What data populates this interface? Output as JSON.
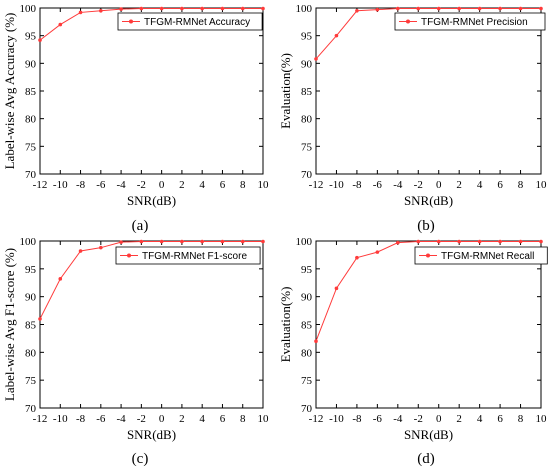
{
  "figure": {
    "colors": {
      "series": "#ff3b3b",
      "axis": "#000000"
    }
  },
  "chart_data": [
    {
      "type": "line",
      "caption": "(a)",
      "xlabel": "SNR(dB)",
      "ylabel": "Label-wise Avg Accuracy (%)",
      "xlim": [
        -12,
        10
      ],
      "ylim": [
        70,
        100
      ],
      "xticks": [
        -12,
        -10,
        -8,
        -6,
        -4,
        -2,
        0,
        2,
        4,
        6,
        8,
        10
      ],
      "yticks": [
        70,
        75,
        80,
        85,
        90,
        95,
        100
      ],
      "legend_position": "top-right",
      "x": [
        -12,
        -10,
        -8,
        -6,
        -4,
        -2,
        0,
        2,
        4,
        6,
        8,
        10
      ],
      "series": [
        {
          "name": "TFGM-RMNet Accuracy",
          "values": [
            94.2,
            97.0,
            99.2,
            99.5,
            99.8,
            99.9,
            99.9,
            99.9,
            99.9,
            99.9,
            99.9,
            99.9
          ]
        }
      ]
    },
    {
      "type": "line",
      "caption": "(b)",
      "xlabel": "SNR(dB)",
      "ylabel": "Evaluation(%)",
      "xlim": [
        -12,
        10
      ],
      "ylim": [
        70,
        100
      ],
      "xticks": [
        -12,
        -10,
        -8,
        -6,
        -4,
        -2,
        0,
        2,
        4,
        6,
        8,
        10
      ],
      "yticks": [
        70,
        75,
        80,
        85,
        90,
        95,
        100
      ],
      "legend_position": "top-right",
      "x": [
        -12,
        -10,
        -8,
        -6,
        -4,
        -2,
        0,
        2,
        4,
        6,
        8,
        10
      ],
      "series": [
        {
          "name": "TFGM-RMNet Precision",
          "values": [
            90.8,
            95.0,
            99.5,
            99.7,
            99.9,
            99.9,
            99.9,
            99.9,
            99.9,
            99.9,
            99.9,
            99.9
          ]
        }
      ]
    },
    {
      "type": "line",
      "caption": "(c)",
      "xlabel": "SNR(dB)",
      "ylabel": "Label-wise Avg F1-score (%)",
      "xlim": [
        -12,
        10
      ],
      "ylim": [
        70,
        100
      ],
      "xticks": [
        -12,
        -10,
        -8,
        -6,
        -4,
        -2,
        0,
        2,
        4,
        6,
        8,
        10
      ],
      "yticks": [
        70,
        75,
        80,
        85,
        90,
        95,
        100
      ],
      "legend_position": "top-right",
      "x": [
        -12,
        -10,
        -8,
        -6,
        -4,
        -2,
        0,
        2,
        4,
        6,
        8,
        10
      ],
      "series": [
        {
          "name": "TFGM-RMNet F1-score",
          "values": [
            86.0,
            93.2,
            98.2,
            98.8,
            99.8,
            99.9,
            99.9,
            99.9,
            99.9,
            99.9,
            99.9,
            99.9
          ]
        }
      ]
    },
    {
      "type": "line",
      "caption": "(d)",
      "xlabel": "SNR(dB)",
      "ylabel": "Evaluation(%)",
      "xlim": [
        -12,
        10
      ],
      "ylim": [
        70,
        100
      ],
      "xticks": [
        -12,
        -10,
        -8,
        -6,
        -4,
        -2,
        0,
        2,
        4,
        6,
        8,
        10
      ],
      "yticks": [
        70,
        75,
        80,
        85,
        90,
        95,
        100
      ],
      "legend_position": "top-right",
      "x": [
        -12,
        -10,
        -8,
        -6,
        -4,
        -2,
        0,
        2,
        4,
        6,
        8,
        10
      ],
      "series": [
        {
          "name": "TFGM-RMNet Recall",
          "values": [
            82.0,
            91.5,
            97.0,
            98.0,
            99.7,
            99.9,
            99.9,
            99.9,
            99.9,
            99.9,
            99.9,
            99.9
          ]
        }
      ]
    }
  ]
}
